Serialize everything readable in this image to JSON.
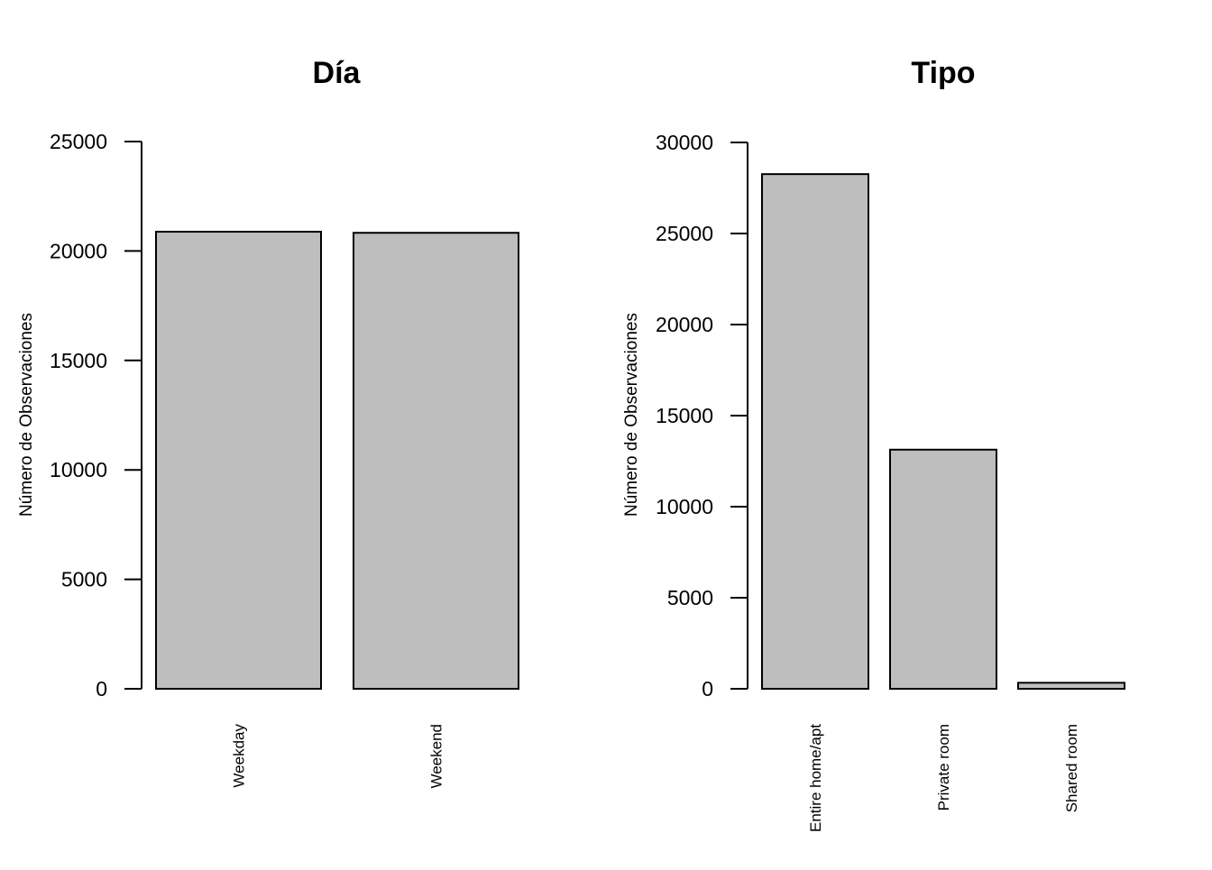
{
  "chart_data": [
    {
      "type": "bar",
      "title": "Día",
      "ylabel": "Número de Observaciones",
      "xlabel": "",
      "categories": [
        "Weekday",
        "Weekend"
      ],
      "values": [
        20880,
        20830
      ],
      "ylim": [
        0,
        25000
      ],
      "yticks": [
        0,
        5000,
        10000,
        15000,
        20000,
        25000
      ],
      "bar_color": "#bebebe",
      "grid": false,
      "x_tick_rotation": "vertical"
    },
    {
      "type": "bar",
      "title": "Tipo",
      "ylabel": "Número de Observaciones",
      "xlabel": "",
      "categories": [
        "Entire home/apt",
        "Private room",
        "Shared room"
      ],
      "values": [
        28260,
        13130,
        330
      ],
      "ylim": [
        0,
        30000
      ],
      "yticks": [
        0,
        5000,
        10000,
        15000,
        20000,
        25000,
        30000
      ],
      "bar_color": "#bebebe",
      "grid": false,
      "x_tick_rotation": "vertical"
    }
  ]
}
